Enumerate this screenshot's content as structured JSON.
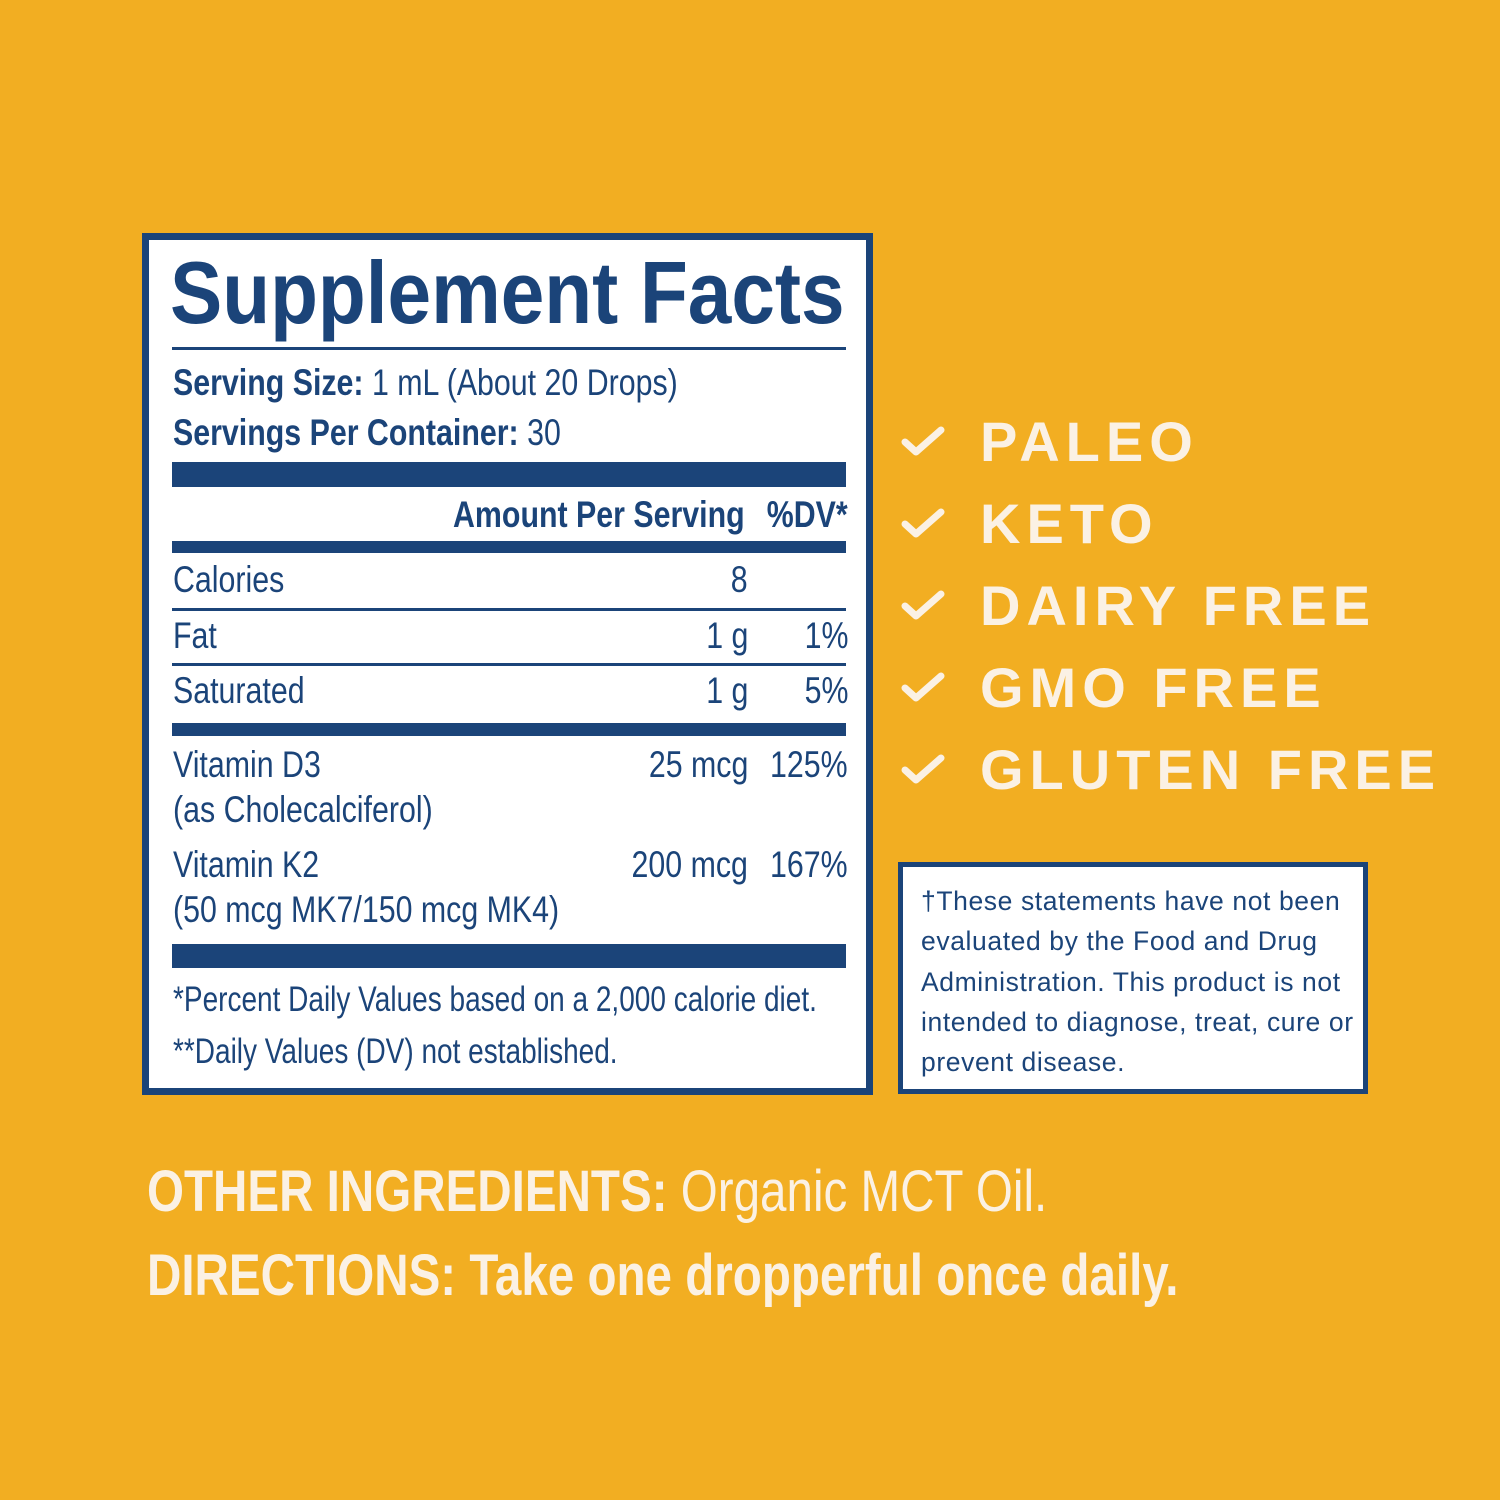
{
  "colors": {
    "background": "#F2AE22",
    "navy": "#1B4479",
    "cream": "#FBF1E4",
    "panel": "#FFFFFF"
  },
  "facts": {
    "title": "Supplement Facts",
    "serving_size_label": "Serving Size:",
    "serving_size_value": "1 mL (About 20 Drops)",
    "servings_label": "Servings Per Container:",
    "servings_value": "30",
    "header_amount": "Amount Per Serving",
    "header_dv": "%DV*",
    "rows": [
      {
        "name": "Calories",
        "sub": "",
        "amount": "8",
        "dv": ""
      },
      {
        "name": "Fat",
        "sub": "",
        "amount": "1 g",
        "dv": "1%"
      },
      {
        "name": "Saturated",
        "sub": "",
        "amount": "1 g",
        "dv": "5%"
      },
      {
        "name": "Vitamin D3",
        "sub": "(as Cholecalciferol)",
        "amount": "25 mcg",
        "dv": "125%"
      },
      {
        "name": "Vitamin K2",
        "sub": "(50 mcg MK7/150 mcg MK4)",
        "amount": "200 mcg",
        "dv": "167%"
      }
    ],
    "footnote_1": "*Percent Daily Values based on a 2,000 calorie diet.",
    "footnote_2": "**Daily Values (DV) not established."
  },
  "claims": [
    {
      "icon": "check-icon",
      "label": "PALEO"
    },
    {
      "icon": "check-icon",
      "label": "KETO"
    },
    {
      "icon": "check-icon",
      "label": "DAIRY FREE"
    },
    {
      "icon": "check-icon",
      "label": "GMO FREE"
    },
    {
      "icon": "check-icon",
      "label": "GLUTEN FREE"
    }
  ],
  "disclaimer": "†These statements have not been evaluated by the Food and Drug Administration. This product is not intended to diagnose, treat, cure or prevent disease.",
  "other_ingredients": {
    "label": "OTHER INGREDIENTS:",
    "value": "Organic MCT Oil."
  },
  "directions": {
    "label": "DIRECTIONS:",
    "value": "Take one dropperful once daily."
  }
}
